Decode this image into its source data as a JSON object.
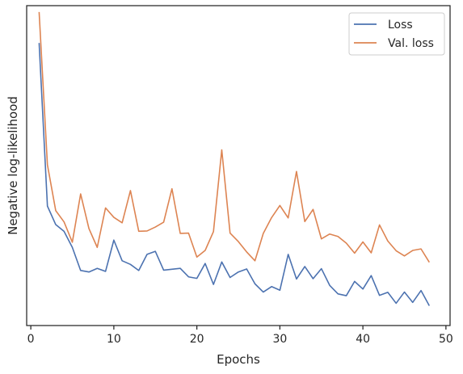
{
  "chart_data": {
    "type": "line",
    "xlabel": "Epochs",
    "ylabel": "Negative log-likelihood",
    "xlim": [
      -0.5,
      50.5
    ],
    "ylim": [
      0,
      1
    ],
    "y_tick_labels_shown": false,
    "x_ticks": [
      0,
      10,
      20,
      30,
      40,
      50
    ],
    "x_tick_labels": [
      "0",
      "10",
      "20",
      "30",
      "40",
      "50"
    ],
    "grid": false,
    "legend_position": "top-right",
    "x": [
      1,
      2,
      3,
      4,
      5,
      6,
      7,
      8,
      9,
      10,
      11,
      12,
      13,
      14,
      15,
      16,
      17,
      18,
      19,
      20,
      21,
      22,
      23,
      24,
      25,
      26,
      27,
      28,
      29,
      30,
      31,
      32,
      33,
      34,
      35,
      36,
      37,
      38,
      39,
      40,
      41,
      42,
      43,
      44,
      45,
      46,
      47,
      48
    ],
    "series": [
      {
        "name": "Loss",
        "color": "#4c72b0",
        "values": [
          0.909,
          0.372,
          0.311,
          0.289,
          0.236,
          0.16,
          0.155,
          0.167,
          0.157,
          0.26,
          0.192,
          0.18,
          0.16,
          0.213,
          0.223,
          0.161,
          0.164,
          0.167,
          0.139,
          0.134,
          0.183,
          0.114,
          0.188,
          0.137,
          0.155,
          0.165,
          0.116,
          0.089,
          0.107,
          0.095,
          0.213,
          0.132,
          0.173,
          0.133,
          0.166,
          0.111,
          0.083,
          0.077,
          0.124,
          0.099,
          0.143,
          0.078,
          0.088,
          0.052,
          0.089,
          0.055,
          0.094,
          0.044
        ]
      },
      {
        "name": "Val. loss",
        "color": "#dd8452",
        "values": [
          1.011,
          0.508,
          0.357,
          0.32,
          0.253,
          0.412,
          0.298,
          0.236,
          0.366,
          0.335,
          0.317,
          0.423,
          0.289,
          0.29,
          0.303,
          0.319,
          0.429,
          0.282,
          0.283,
          0.204,
          0.226,
          0.288,
          0.557,
          0.283,
          0.255,
          0.221,
          0.192,
          0.282,
          0.334,
          0.374,
          0.333,
          0.486,
          0.321,
          0.361,
          0.264,
          0.28,
          0.272,
          0.25,
          0.217,
          0.254,
          0.218,
          0.31,
          0.257,
          0.225,
          0.208,
          0.226,
          0.231,
          0.187
        ]
      }
    ]
  }
}
